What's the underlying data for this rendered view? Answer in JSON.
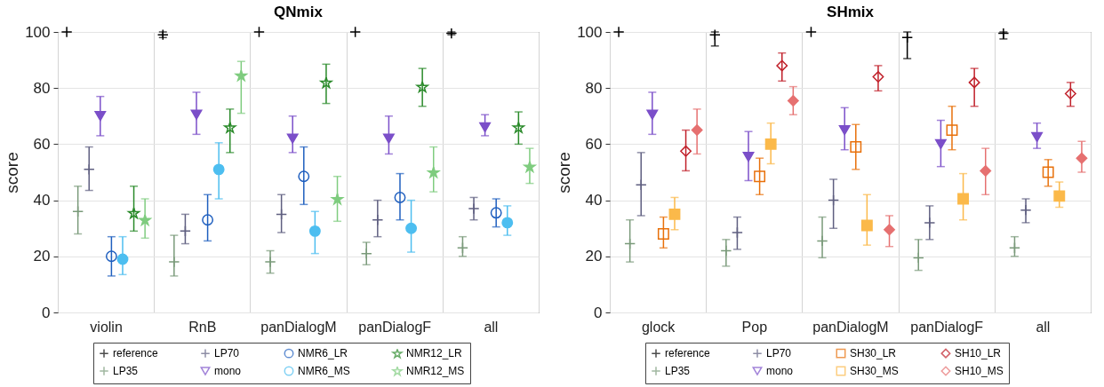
{
  "chart_data": [
    {
      "type": "scatter",
      "title": "QNmix",
      "ylabel": "score",
      "categories": [
        "violin",
        "RnB",
        "panDialogM",
        "panDialogF",
        "all"
      ],
      "ylim": [
        0,
        100
      ],
      "yticks": [
        0,
        20,
        40,
        60,
        80,
        100
      ],
      "grid": true,
      "legend": "bottom",
      "series": [
        {
          "name": "reference",
          "color": "#000000",
          "marker": "cross",
          "values": [
            100,
            99,
            100,
            100,
            99.5
          ],
          "errors": [
            null,
            [
              98,
              100
            ],
            null,
            null,
            [
              99,
              100
            ]
          ]
        },
        {
          "name": "LP35",
          "color": "#7a9a7a",
          "marker": "cross",
          "values": [
            36,
            18,
            18,
            21,
            23
          ],
          "errors": [
            [
              28,
              45
            ],
            [
              13,
              27.5
            ],
            [
              14,
              22
            ],
            [
              17,
              25
            ],
            [
              20,
              27
            ]
          ]
        },
        {
          "name": "LP70",
          "color": "#5f5f80",
          "marker": "cross",
          "values": [
            51,
            29,
            35,
            33,
            37
          ],
          "errors": [
            [
              43.5,
              59
            ],
            [
              24.5,
              35
            ],
            [
              28.5,
              42
            ],
            [
              27,
              40
            ],
            [
              33,
              41
            ]
          ]
        },
        {
          "name": "mono",
          "color": "#7b4fc9",
          "marker": "triangle-down",
          "values": [
            70,
            70.5,
            62,
            62,
            66
          ],
          "errors": [
            [
              63,
              77
            ],
            [
              63.5,
              78.5
            ],
            [
              57,
              70
            ],
            [
              56.5,
              70
            ],
            [
              63,
              70.5
            ]
          ]
        },
        {
          "name": "NMR6_LR",
          "color": "#1f5fbf",
          "marker": "circle-open",
          "values": [
            20,
            33,
            48.5,
            41,
            35.5
          ],
          "errors": [
            [
              13,
              27
            ],
            [
              25.5,
              42
            ],
            [
              38.5,
              59
            ],
            [
              33,
              49.5
            ],
            [
              30.5,
              40.5
            ]
          ]
        },
        {
          "name": "NMR6_MS",
          "color": "#4dbef0",
          "marker": "circle",
          "values": [
            19,
            51,
            29,
            30,
            32
          ],
          "errors": [
            [
              13.5,
              27
            ],
            [
              40.5,
              60.5
            ],
            [
              21,
              36
            ],
            [
              21.5,
              40
            ],
            [
              27.5,
              38
            ]
          ]
        },
        {
          "name": "NMR12_LR",
          "color": "#2a8a2a",
          "marker": "star-open",
          "values": [
            35.5,
            66,
            82,
            80.5,
            66
          ],
          "errors": [
            [
              29,
              45
            ],
            [
              57,
              72.5
            ],
            [
              74.5,
              88.5
            ],
            [
              73.5,
              87
            ],
            [
              60,
              71.5
            ]
          ]
        },
        {
          "name": "NMR12_MS",
          "color": "#7fcc7f",
          "marker": "star",
          "values": [
            33,
            84.5,
            40.5,
            50,
            52
          ],
          "errors": [
            [
              26.5,
              40.5
            ],
            [
              71,
              89.5
            ],
            [
              32.5,
              48.5
            ],
            [
              43,
              59
            ],
            [
              46,
              58.5
            ]
          ]
        }
      ]
    },
    {
      "type": "scatter",
      "title": "SHmix",
      "ylabel": "score",
      "categories": [
        "glock",
        "Pop",
        "panDialogM",
        "panDialogF",
        "all"
      ],
      "ylim": [
        0,
        100
      ],
      "yticks": [
        0,
        20,
        40,
        60,
        80,
        100
      ],
      "grid": true,
      "legend": "bottom",
      "series": [
        {
          "name": "reference",
          "color": "#000000",
          "marker": "cross",
          "values": [
            100,
            99,
            100,
            98,
            99.5
          ],
          "errors": [
            null,
            [
              95,
              100
            ],
            null,
            [
              90.5,
              100
            ],
            [
              97.5,
              100
            ]
          ]
        },
        {
          "name": "LP35",
          "color": "#7a9a7a",
          "marker": "cross",
          "values": [
            24.5,
            22,
            25.5,
            19.5,
            23
          ],
          "errors": [
            [
              18,
              33
            ],
            [
              16.5,
              26
            ],
            [
              19.5,
              34
            ],
            [
              15,
              26
            ],
            [
              20,
              27
            ]
          ]
        },
        {
          "name": "LP70",
          "color": "#5f5f80",
          "marker": "cross",
          "values": [
            45.5,
            28.5,
            40,
            32,
            36.5
          ],
          "errors": [
            [
              34.5,
              57
            ],
            [
              22.5,
              34
            ],
            [
              30,
              47.5
            ],
            [
              26,
              38
            ],
            [
              32,
              40.5
            ]
          ]
        },
        {
          "name": "mono",
          "color": "#7b4fc9",
          "marker": "triangle-down",
          "values": [
            70.5,
            55.5,
            65,
            60,
            62.5
          ],
          "errors": [
            [
              63.5,
              78.5
            ],
            [
              47,
              64.5
            ],
            [
              58,
              73
            ],
            [
              52,
              68.5
            ],
            [
              58.5,
              67.5
            ]
          ]
        },
        {
          "name": "SH30_LR",
          "color": "#e8700a",
          "marker": "square-open",
          "values": [
            28,
            48.5,
            59,
            65,
            50
          ],
          "errors": [
            [
              23,
              34
            ],
            [
              42,
              55
            ],
            [
              51,
              67
            ],
            [
              58,
              73.5
            ],
            [
              45,
              54.5
            ]
          ]
        },
        {
          "name": "SH30_MS",
          "color": "#fbb94a",
          "marker": "square",
          "values": [
            35,
            60,
            31,
            40.5,
            41.5
          ],
          "errors": [
            [
              29.5,
              41
            ],
            [
              53,
              67.5
            ],
            [
              24,
              42
            ],
            [
              33,
              49.5
            ],
            [
              37.5,
              46.5
            ]
          ]
        },
        {
          "name": "SH10_LR",
          "color": "#c0202a",
          "marker": "diamond-open",
          "values": [
            57.5,
            88,
            84,
            82,
            78
          ],
          "errors": [
            [
              50.5,
              65
            ],
            [
              82.5,
              92.5
            ],
            [
              79,
              88
            ],
            [
              73.5,
              87
            ],
            [
              73.5,
              82
            ]
          ]
        },
        {
          "name": "SH10_MS",
          "color": "#e67070",
          "marker": "diamond",
          "values": [
            65,
            75.5,
            29.5,
            50.5,
            55
          ],
          "errors": [
            [
              56.5,
              72.5
            ],
            [
              70.5,
              80.5
            ],
            [
              23.5,
              34.5
            ],
            [
              42,
              58.5
            ],
            [
              50,
              61
            ]
          ]
        }
      ]
    }
  ]
}
